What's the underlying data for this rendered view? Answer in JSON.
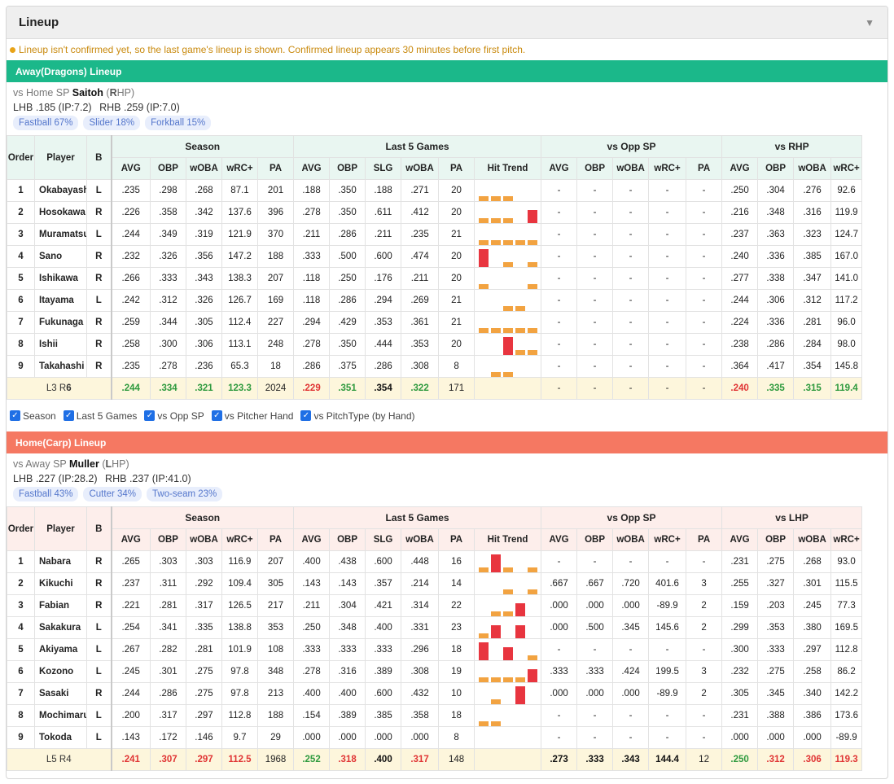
{
  "panel": {
    "title": "Lineup",
    "notice": "Lineup isn't confirmed yet, so the last game's lineup is shown. Confirmed lineup appears 30 minutes before first pitch."
  },
  "colors": {
    "away": "#1bb88a",
    "home": "#f57862",
    "good": "#2e9a3e",
    "bad": "#e03434",
    "trend_bar": "#f2a341",
    "trend_hit": "#e8353f"
  },
  "headers": {
    "order": "Order",
    "player": "Player",
    "bats": "B",
    "season": "Season",
    "last5": "Last 5 Games",
    "vs_opp_sp": "vs Opp SP",
    "season_cols": [
      "AVG",
      "OBP",
      "wOBA",
      "wRC+",
      "PA"
    ],
    "last5_cols": [
      "AVG",
      "OBP",
      "SLG",
      "wOBA",
      "PA",
      "Hit Trend"
    ],
    "opp_cols": [
      "AVG",
      "OBP",
      "wOBA",
      "wRC+",
      "PA"
    ],
    "hand_cols": [
      "AVG",
      "OBP",
      "wOBA",
      "wRC+"
    ]
  },
  "filters": [
    "Season",
    "Last 5 Games",
    "vs Opp SP",
    "vs Pitcher Hand",
    "vs PitchType (by Hand)"
  ],
  "away": {
    "bar": "Away(Dragons) Lineup",
    "vs_label": "vs Home SP",
    "sp_name": "Saitoh",
    "sp_hand_pre": "(",
    "sp_hand_letter": "R",
    "sp_hand_post": "HP)",
    "lhb_label": "LHB",
    "lhb": ".185 (IP:7.2)",
    "rhb_label": "RHB",
    "rhb": ".259 (IP:7.0)",
    "pitches": [
      "Fastball 67%",
      "Slider 18%",
      "Forkball 15%"
    ],
    "hand_group": "vs RHP",
    "rows": [
      {
        "o": "1",
        "name": "Okabayashi",
        "b": "L",
        "s": [
          ".235",
          ".298",
          ".268",
          "87.1",
          "201"
        ],
        "l5": [
          ".188",
          ".350",
          ".188",
          ".271",
          "20"
        ],
        "trend": [
          1,
          1,
          1,
          0,
          0
        ],
        "op": [
          "-",
          "-",
          "-",
          "-",
          "-"
        ],
        "h": [
          ".250",
          ".304",
          ".276",
          "92.6"
        ]
      },
      {
        "o": "2",
        "name": "Hosokawa",
        "b": "R",
        "s": [
          ".226",
          ".358",
          ".342",
          "137.6",
          "396"
        ],
        "l5": [
          ".278",
          ".350",
          ".611",
          ".412",
          "20"
        ],
        "trend": [
          1,
          1,
          1,
          0,
          3
        ],
        "op": [
          "-",
          "-",
          "-",
          "-",
          "-"
        ],
        "h": [
          ".216",
          ".348",
          ".316",
          "119.9"
        ]
      },
      {
        "o": "3",
        "name": "Muramatsu",
        "b": "L",
        "s": [
          ".244",
          ".349",
          ".319",
          "121.9",
          "370"
        ],
        "l5": [
          ".211",
          ".286",
          ".211",
          ".235",
          "21"
        ],
        "trend": [
          1,
          1,
          1,
          1,
          1
        ],
        "op": [
          "-",
          "-",
          "-",
          "-",
          "-"
        ],
        "h": [
          ".237",
          ".363",
          ".323",
          "124.7"
        ]
      },
      {
        "o": "4",
        "name": "Sano",
        "b": "R",
        "s": [
          ".232",
          ".326",
          ".356",
          "147.2",
          "188"
        ],
        "l5": [
          ".333",
          ".500",
          ".600",
          ".474",
          "20"
        ],
        "trend": [
          4,
          0,
          1,
          0,
          1
        ],
        "op": [
          "-",
          "-",
          "-",
          "-",
          "-"
        ],
        "h": [
          ".240",
          ".336",
          ".385",
          "167.0"
        ]
      },
      {
        "o": "5",
        "name": "Ishikawa",
        "b": "R",
        "s": [
          ".266",
          ".333",
          ".343",
          "138.3",
          "207"
        ],
        "l5": [
          ".118",
          ".250",
          ".176",
          ".211",
          "20"
        ],
        "trend": [
          1,
          0,
          0,
          0,
          1
        ],
        "op": [
          "-",
          "-",
          "-",
          "-",
          "-"
        ],
        "h": [
          ".277",
          ".338",
          ".347",
          "141.0"
        ]
      },
      {
        "o": "6",
        "name": "Itayama",
        "b": "L",
        "s": [
          ".242",
          ".312",
          ".326",
          "126.7",
          "169"
        ],
        "l5": [
          ".118",
          ".286",
          ".294",
          ".269",
          "21"
        ],
        "trend": [
          0,
          0,
          1,
          1,
          0
        ],
        "op": [
          "-",
          "-",
          "-",
          "-",
          "-"
        ],
        "h": [
          ".244",
          ".306",
          ".312",
          "117.2"
        ]
      },
      {
        "o": "7",
        "name": "Fukunaga",
        "b": "R",
        "s": [
          ".259",
          ".344",
          ".305",
          "112.4",
          "227"
        ],
        "l5": [
          ".294",
          ".429",
          ".353",
          ".361",
          "21"
        ],
        "trend": [
          1,
          1,
          1,
          1,
          1
        ],
        "op": [
          "-",
          "-",
          "-",
          "-",
          "-"
        ],
        "h": [
          ".224",
          ".336",
          ".281",
          "96.0"
        ]
      },
      {
        "o": "8",
        "name": "Ishii",
        "b": "R",
        "s": [
          ".258",
          ".300",
          ".306",
          "113.1",
          "248"
        ],
        "l5": [
          ".278",
          ".350",
          ".444",
          ".353",
          "20"
        ],
        "trend": [
          0,
          0,
          4,
          1,
          1
        ],
        "op": [
          "-",
          "-",
          "-",
          "-",
          "-"
        ],
        "h": [
          ".238",
          ".286",
          ".284",
          "98.0"
        ]
      },
      {
        "o": "9",
        "name": "Takahashi",
        "b": "R",
        "s": [
          ".235",
          ".278",
          ".236",
          "65.3",
          "18"
        ],
        "l5": [
          ".286",
          ".375",
          ".286",
          ".308",
          "8"
        ],
        "trend": [
          0,
          1,
          1,
          0,
          0
        ],
        "op": [
          "-",
          "-",
          "-",
          "-",
          "-"
        ],
        "h": [
          ".364",
          ".417",
          ".354",
          "145.8"
        ]
      }
    ],
    "total": {
      "l_label": "L3",
      "r_label": "R",
      "r_count": "6",
      "s": [
        {
          "v": ".244",
          "c": "g"
        },
        {
          "v": ".334",
          "c": "g"
        },
        {
          "v": ".321",
          "c": "g"
        },
        {
          "v": "123.3",
          "c": "g"
        },
        {
          "v": "2024",
          "c": "n"
        }
      ],
      "l5": [
        {
          "v": ".229",
          "c": "r"
        },
        {
          "v": ".351",
          "c": "g"
        },
        {
          "v": ".354",
          "c": "k"
        },
        {
          "v": ".322",
          "c": "g"
        },
        {
          "v": "171",
          "c": "n"
        }
      ],
      "op": [
        {
          "v": "-",
          "c": "n"
        },
        {
          "v": "-",
          "c": "n"
        },
        {
          "v": "-",
          "c": "n"
        },
        {
          "v": "-",
          "c": "n"
        },
        {
          "v": "-",
          "c": "n"
        }
      ],
      "h": [
        {
          "v": ".240",
          "c": "r"
        },
        {
          "v": ".335",
          "c": "g"
        },
        {
          "v": ".315",
          "c": "g"
        },
        {
          "v": "119.4",
          "c": "g"
        }
      ]
    }
  },
  "home": {
    "bar": "Home(Carp) Lineup",
    "vs_label": "vs Away SP",
    "sp_name": "Muller",
    "sp_hand_pre": "(",
    "sp_hand_letter": "L",
    "sp_hand_post": "HP)",
    "lhb_label": "LHB",
    "lhb": ".227 (IP:28.2)",
    "rhb_label": "RHB",
    "rhb": ".237 (IP:41.0)",
    "pitches": [
      "Fastball 43%",
      "Cutter 34%",
      "Two-seam 23%"
    ],
    "hand_group": "vs LHP",
    "rows": [
      {
        "o": "1",
        "name": "Nabara",
        "b": "R",
        "s": [
          ".265",
          ".303",
          ".303",
          "116.9",
          "207"
        ],
        "l5": [
          ".400",
          ".438",
          ".600",
          ".448",
          "16"
        ],
        "trend": [
          1,
          4,
          1,
          0,
          1
        ],
        "op": [
          "-",
          "-",
          "-",
          "-",
          "-"
        ],
        "h": [
          ".231",
          ".275",
          ".268",
          "93.0"
        ]
      },
      {
        "o": "2",
        "name": "Kikuchi",
        "b": "R",
        "s": [
          ".237",
          ".311",
          ".292",
          "109.4",
          "305"
        ],
        "l5": [
          ".143",
          ".143",
          ".357",
          ".214",
          "14"
        ],
        "trend": [
          0,
          0,
          1,
          0,
          1
        ],
        "op": [
          ".667",
          ".667",
          ".720",
          "401.6",
          "3"
        ],
        "h": [
          ".255",
          ".327",
          ".301",
          "115.5"
        ]
      },
      {
        "o": "3",
        "name": "Fabian",
        "b": "R",
        "s": [
          ".221",
          ".281",
          ".317",
          "126.5",
          "217"
        ],
        "l5": [
          ".211",
          ".304",
          ".421",
          ".314",
          "22"
        ],
        "trend": [
          0,
          1,
          1,
          3,
          0
        ],
        "op": [
          ".000",
          ".000",
          ".000",
          "-89.9",
          "2"
        ],
        "h": [
          ".159",
          ".203",
          ".245",
          "77.3"
        ]
      },
      {
        "o": "4",
        "name": "Sakakura",
        "b": "L",
        "s": [
          ".254",
          ".341",
          ".335",
          "138.8",
          "353"
        ],
        "l5": [
          ".250",
          ".348",
          ".400",
          ".331",
          "23"
        ],
        "trend": [
          1,
          3,
          0,
          3,
          0
        ],
        "op": [
          ".000",
          ".500",
          ".345",
          "145.6",
          "2"
        ],
        "h": [
          ".299",
          ".353",
          ".380",
          "169.5"
        ]
      },
      {
        "o": "5",
        "name": "Akiyama",
        "b": "L",
        "s": [
          ".267",
          ".282",
          ".281",
          "101.9",
          "108"
        ],
        "l5": [
          ".333",
          ".333",
          ".333",
          ".296",
          "18"
        ],
        "trend": [
          4,
          0,
          3,
          0,
          1
        ],
        "op": [
          "-",
          "-",
          "-",
          "-",
          "-"
        ],
        "h": [
          ".300",
          ".333",
          ".297",
          "112.8"
        ]
      },
      {
        "o": "6",
        "name": "Kozono",
        "b": "L",
        "s": [
          ".245",
          ".301",
          ".275",
          "97.8",
          "348"
        ],
        "l5": [
          ".278",
          ".316",
          ".389",
          ".308",
          "19"
        ],
        "trend": [
          1,
          1,
          1,
          1,
          3
        ],
        "op": [
          ".333",
          ".333",
          ".424",
          "199.5",
          "3"
        ],
        "h": [
          ".232",
          ".275",
          ".258",
          "86.2"
        ]
      },
      {
        "o": "7",
        "name": "Sasaki",
        "b": "R",
        "s": [
          ".244",
          ".286",
          ".275",
          "97.8",
          "213"
        ],
        "l5": [
          ".400",
          ".400",
          ".600",
          ".432",
          "10"
        ],
        "trend": [
          0,
          1,
          0,
          4,
          0
        ],
        "op": [
          ".000",
          ".000",
          ".000",
          "-89.9",
          "2"
        ],
        "h": [
          ".305",
          ".345",
          ".340",
          "142.2"
        ]
      },
      {
        "o": "8",
        "name": "Mochimaru",
        "b": "L",
        "s": [
          ".200",
          ".317",
          ".297",
          "112.8",
          "188"
        ],
        "l5": [
          ".154",
          ".389",
          ".385",
          ".358",
          "18"
        ],
        "trend": [
          1,
          1,
          0,
          0,
          0
        ],
        "op": [
          "-",
          "-",
          "-",
          "-",
          "-"
        ],
        "h": [
          ".231",
          ".388",
          ".386",
          "173.6"
        ]
      },
      {
        "o": "9",
        "name": "Tokoda",
        "b": "L",
        "s": [
          ".143",
          ".172",
          ".146",
          "9.7",
          "29"
        ],
        "l5": [
          ".000",
          ".000",
          ".000",
          ".000",
          "8"
        ],
        "trend": [
          0,
          0,
          0,
          0,
          0
        ],
        "op": [
          "-",
          "-",
          "-",
          "-",
          "-"
        ],
        "h": [
          ".000",
          ".000",
          ".000",
          "-89.9"
        ]
      }
    ],
    "total": {
      "l_label": "L5",
      "r_label": "R4",
      "r_count": "",
      "s": [
        {
          "v": ".241",
          "c": "r"
        },
        {
          "v": ".307",
          "c": "r"
        },
        {
          "v": ".297",
          "c": "r"
        },
        {
          "v": "112.5",
          "c": "r"
        },
        {
          "v": "1968",
          "c": "n"
        }
      ],
      "l5": [
        {
          "v": ".252",
          "c": "g"
        },
        {
          "v": ".318",
          "c": "r"
        },
        {
          "v": ".400",
          "c": "k"
        },
        {
          "v": ".317",
          "c": "r"
        },
        {
          "v": "148",
          "c": "n"
        }
      ],
      "op": [
        {
          "v": ".273",
          "c": "k"
        },
        {
          "v": ".333",
          "c": "k"
        },
        {
          "v": ".343",
          "c": "k"
        },
        {
          "v": "144.4",
          "c": "k"
        },
        {
          "v": "12",
          "c": "n"
        }
      ],
      "h": [
        {
          "v": ".250",
          "c": "g"
        },
        {
          "v": ".312",
          "c": "r"
        },
        {
          "v": ".306",
          "c": "r"
        },
        {
          "v": "119.3",
          "c": "r"
        }
      ]
    }
  }
}
